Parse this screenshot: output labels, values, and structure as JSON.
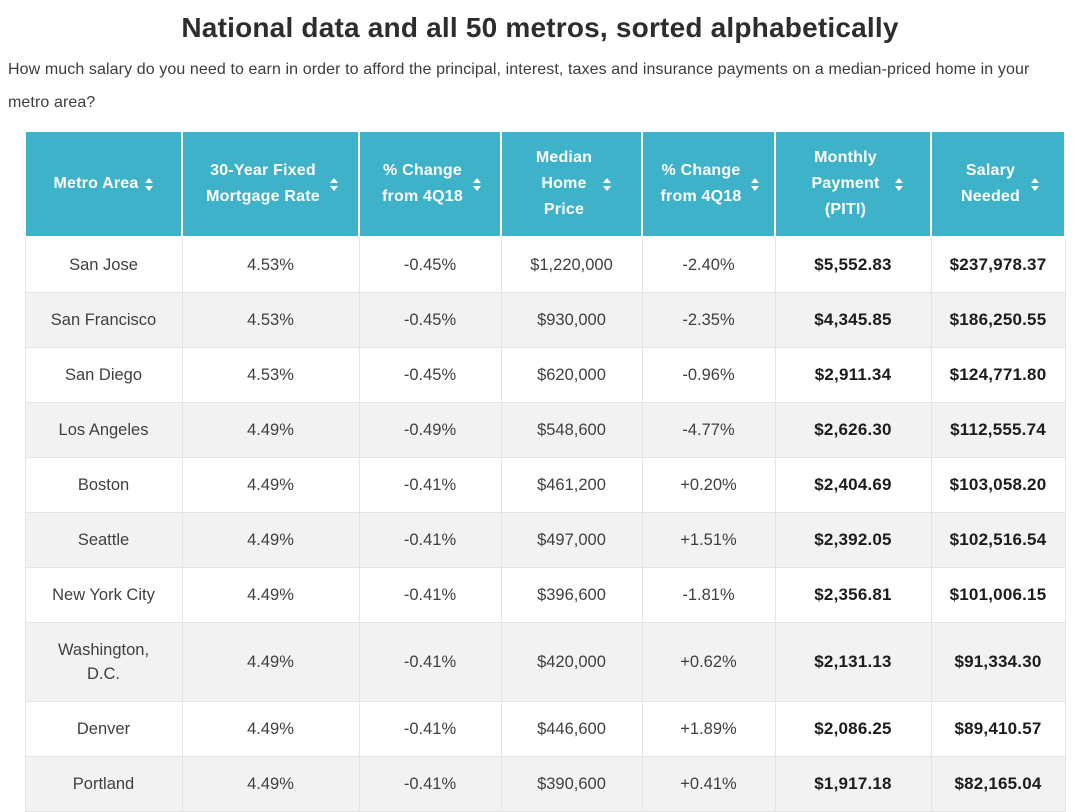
{
  "title": "National data and all 50 metros, sorted alphabetically",
  "subtitle": "How much salary do you need to earn in order to afford the principal, interest, taxes and insurance payments on a median-priced home in your metro area?",
  "colors": {
    "header_bg": "#3EB2C9",
    "header_text": "#FFFFFF",
    "row_alt_bg": "#F2F2F2",
    "border": "#E4E4E4",
    "text": "#3F3F3F",
    "bold_text": "#1C1C1C",
    "title": "#2D2D2D"
  },
  "table": {
    "columns": [
      {
        "key": "metro-area",
        "label": "Metro Area",
        "sortable": true
      },
      {
        "key": "mortgage-rate",
        "label": "30-Year Fixed Mortgage Rate",
        "sortable": true
      },
      {
        "key": "rate-change-4q18",
        "label": "% Change from 4Q18",
        "sortable": true
      },
      {
        "key": "median-home-price",
        "label": "Median Home Price",
        "sortable": true
      },
      {
        "key": "price-change-4q18",
        "label": "% Change from 4Q18",
        "sortable": true
      },
      {
        "key": "monthly-payment-piti",
        "label": "Monthly Payment (PITI)",
        "sortable": true
      },
      {
        "key": "salary-needed",
        "label": "Salary Needed",
        "sortable": true
      }
    ],
    "rows": [
      [
        "San Jose",
        "4.53%",
        "-0.45%",
        "$1,220,000",
        "-2.40%",
        "$5,552.83",
        "$237,978.37"
      ],
      [
        "San Francisco",
        "4.53%",
        "-0.45%",
        "$930,000",
        "-2.35%",
        "$4,345.85",
        "$186,250.55"
      ],
      [
        "San Diego",
        "4.53%",
        "-0.45%",
        "$620,000",
        "-0.96%",
        "$2,911.34",
        "$124,771.80"
      ],
      [
        "Los Angeles",
        "4.49%",
        "-0.49%",
        "$548,600",
        "-4.77%",
        "$2,626.30",
        "$112,555.74"
      ],
      [
        "Boston",
        "4.49%",
        "-0.41%",
        "$461,200",
        "+0.20%",
        "$2,404.69",
        "$103,058.20"
      ],
      [
        "Seattle",
        "4.49%",
        "-0.41%",
        "$497,000",
        "+1.51%",
        "$2,392.05",
        "$102,516.54"
      ],
      [
        "New York City",
        "4.49%",
        "-0.41%",
        "$396,600",
        "-1.81%",
        "$2,356.81",
        "$101,006.15"
      ],
      [
        "Washington, D.C.",
        "4.49%",
        "-0.41%",
        "$420,000",
        "+0.62%",
        "$2,131.13",
        "$91,334.30"
      ],
      [
        "Denver",
        "4.49%",
        "-0.41%",
        "$446,600",
        "+1.89%",
        "$2,086.25",
        "$89,410.57"
      ],
      [
        "Portland",
        "4.49%",
        "-0.41%",
        "$390,600",
        "+0.41%",
        "$1,917.18",
        "$82,165.04"
      ]
    ]
  },
  "chart_data": {
    "type": "table",
    "title": "National data and all 50 metros, sorted alphabetically",
    "columns": [
      "Metro Area",
      "30-Year Fixed Mortgage Rate",
      "% Change from 4Q18",
      "Median Home Price",
      "% Change from 4Q18",
      "Monthly Payment (PITI)",
      "Salary Needed"
    ],
    "rows": [
      [
        "San Jose",
        "4.53%",
        "-0.45%",
        "$1,220,000",
        "-2.40%",
        "$5,552.83",
        "$237,978.37"
      ],
      [
        "San Francisco",
        "4.53%",
        "-0.45%",
        "$930,000",
        "-2.35%",
        "$4,345.85",
        "$186,250.55"
      ],
      [
        "San Diego",
        "4.53%",
        "-0.45%",
        "$620,000",
        "-0.96%",
        "$2,911.34",
        "$124,771.80"
      ],
      [
        "Los Angeles",
        "4.49%",
        "-0.49%",
        "$548,600",
        "-4.77%",
        "$2,626.30",
        "$112,555.74"
      ],
      [
        "Boston",
        "4.49%",
        "-0.41%",
        "$461,200",
        "+0.20%",
        "$2,404.69",
        "$103,058.20"
      ],
      [
        "Seattle",
        "4.49%",
        "-0.41%",
        "$497,000",
        "+1.51%",
        "$2,392.05",
        "$102,516.54"
      ],
      [
        "New York City",
        "4.49%",
        "-0.41%",
        "$396,600",
        "-1.81%",
        "$2,356.81",
        "$101,006.15"
      ],
      [
        "Washington, D.C.",
        "4.49%",
        "-0.41%",
        "$420,000",
        "+0.62%",
        "$2,131.13",
        "$91,334.30"
      ],
      [
        "Denver",
        "4.49%",
        "-0.41%",
        "$446,600",
        "+1.89%",
        "$2,086.25",
        "$89,410.57"
      ],
      [
        "Portland",
        "4.49%",
        "-0.41%",
        "$390,600",
        "+0.41%",
        "$1,917.18",
        "$82,165.04"
      ]
    ]
  }
}
